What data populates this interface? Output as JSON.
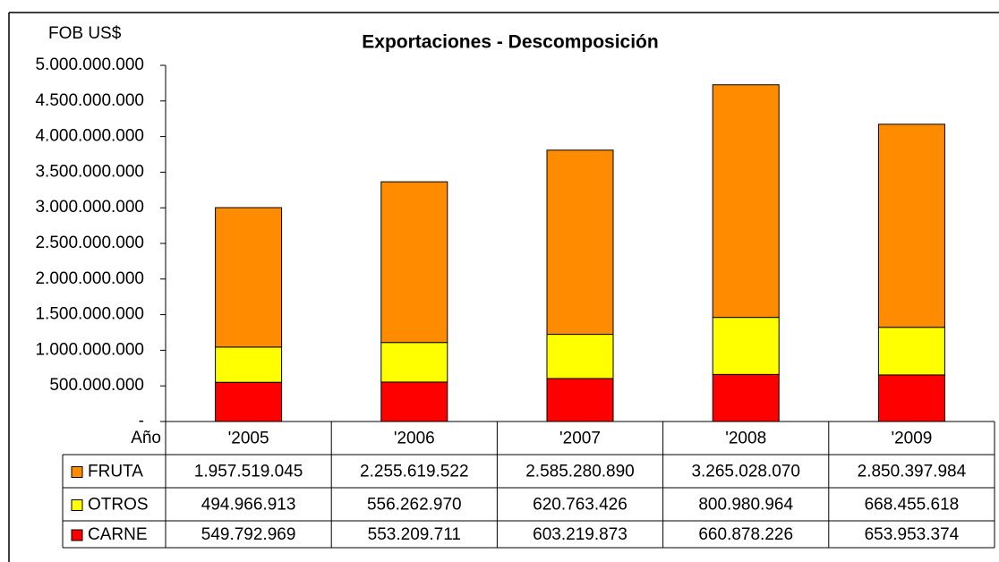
{
  "chart_data": {
    "type": "bar",
    "stacked": true,
    "title": "Exportaciones - Descomposición",
    "y_label": "FOB US$",
    "table_label": "Año",
    "categories": [
      "'2005",
      "'2006",
      "'2007",
      "'2008",
      "'2009"
    ],
    "series": [
      {
        "name": "FRUTA",
        "color": "#ff8c00",
        "values": [
          1957519045,
          2255619522,
          2585280890,
          3265028070,
          2850397984
        ],
        "value_labels": [
          "1.957.519.045",
          "2.255.619.522",
          "2.585.280.890",
          "3.265.028.070",
          "2.850.397.984"
        ]
      },
      {
        "name": "OTROS",
        "color": "#ffff00",
        "values": [
          494966913,
          556262970,
          620763426,
          800980964,
          668455618
        ],
        "value_labels": [
          "494.966.913",
          "556.262.970",
          "620.763.426",
          "800.980.964",
          "668.455.618"
        ]
      },
      {
        "name": "CARNE",
        "color": "#ff0000",
        "values": [
          549792969,
          553209711,
          603219873,
          660878226,
          653953374
        ],
        "value_labels": [
          "549.792.969",
          "553.209.711",
          "603.219.873",
          "660.878.226",
          "653.953.374"
        ]
      }
    ],
    "ylim": [
      0,
      5000000000
    ],
    "yticks": [
      {
        "value": 0,
        "label": "-"
      },
      {
        "value": 500000000,
        "label": "500.000.000"
      },
      {
        "value": 1000000000,
        "label": "1.000.000.000"
      },
      {
        "value": 1500000000,
        "label": "1.500.000.000"
      },
      {
        "value": 2000000000,
        "label": "2.000.000.000"
      },
      {
        "value": 2500000000,
        "label": "2.500.000.000"
      },
      {
        "value": 3000000000,
        "label": "3.000.000.000"
      },
      {
        "value": 3500000000,
        "label": "3.500.000.000"
      },
      {
        "value": 4000000000,
        "label": "4.000.000.000"
      },
      {
        "value": 4500000000,
        "label": "4.500.000.000"
      },
      {
        "value": 5000000000,
        "label": "5.000.000.000"
      }
    ],
    "grid": false
  }
}
